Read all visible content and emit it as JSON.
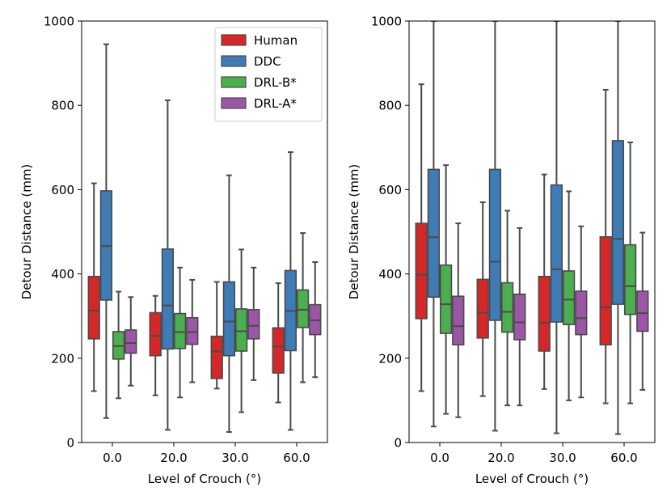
{
  "colors": {
    "Human": "#d62728",
    "DDC": "#3f7bb5",
    "DRL-B*": "#4caf4f",
    "DRL-A*": "#9b56a6",
    "line": "#4a4a4a",
    "axis": "#000000"
  },
  "chart_data": [
    {
      "type": "box",
      "panel": "left",
      "xlabel": "Level of Crouch (°)",
      "ylabel": "Detour Distance (mm)",
      "ylim": [
        0,
        1000
      ],
      "yticks": [
        "0",
        "200",
        "400",
        "600",
        "800",
        "1000"
      ],
      "categories": [
        "0.0",
        "20.0",
        "30.0",
        "60.0"
      ],
      "legend": {
        "position": "top-right",
        "entries": [
          "Human",
          "DDC",
          "DRL-B*",
          "DRL-A*"
        ]
      },
      "series": [
        {
          "name": "Human",
          "boxes": [
            {
              "whislo": 122,
              "q1": 246,
              "med": 313,
              "q3": 394,
              "whishi": 615
            },
            {
              "whislo": 112,
              "q1": 206,
              "med": 253,
              "q3": 308,
              "whishi": 348
            },
            {
              "whislo": 128,
              "q1": 152,
              "med": 216,
              "q3": 252,
              "whishi": 381
            },
            {
              "whislo": 95,
              "q1": 165,
              "med": 228,
              "q3": 272,
              "whishi": 378
            }
          ]
        },
        {
          "name": "DDC",
          "boxes": [
            {
              "whislo": 58,
              "q1": 338,
              "med": 466,
              "q3": 597,
              "whishi": 945
            },
            {
              "whislo": 30,
              "q1": 222,
              "med": 325,
              "q3": 459,
              "whishi": 812
            },
            {
              "whislo": 25,
              "q1": 206,
              "med": 287,
              "q3": 381,
              "whishi": 634
            },
            {
              "whislo": 30,
              "q1": 218,
              "med": 312,
              "q3": 408,
              "whishi": 689
            }
          ]
        },
        {
          "name": "DRL-B*",
          "boxes": [
            {
              "whislo": 105,
              "q1": 198,
              "med": 229,
              "q3": 263,
              "whishi": 358
            },
            {
              "whislo": 107,
              "q1": 223,
              "med": 262,
              "q3": 306,
              "whishi": 415
            },
            {
              "whislo": 72,
              "q1": 217,
              "med": 264,
              "q3": 317,
              "whishi": 458
            },
            {
              "whislo": 143,
              "q1": 273,
              "med": 315,
              "q3": 362,
              "whishi": 497
            }
          ]
        },
        {
          "name": "DRL-A*",
          "boxes": [
            {
              "whislo": 135,
              "q1": 212,
              "med": 236,
              "q3": 267,
              "whishi": 345
            },
            {
              "whislo": 143,
              "q1": 233,
              "med": 262,
              "q3": 296,
              "whishi": 386
            },
            {
              "whislo": 148,
              "q1": 246,
              "med": 277,
              "q3": 315,
              "whishi": 415
            },
            {
              "whislo": 155,
              "q1": 256,
              "med": 290,
              "q3": 327,
              "whishi": 428
            }
          ]
        }
      ]
    },
    {
      "type": "box",
      "panel": "right",
      "xlabel": "Level of Crouch (°)",
      "ylabel": "Detour Distance (mm)",
      "ylim": [
        0,
        1000
      ],
      "yticks": [
        "0",
        "200",
        "400",
        "600",
        "800",
        "1000"
      ],
      "categories": [
        "0.0",
        "20.0",
        "30.0",
        "60.0"
      ],
      "series": [
        {
          "name": "Human",
          "boxes": [
            {
              "whislo": 122,
              "q1": 294,
              "med": 398,
              "q3": 520,
              "whishi": 850
            },
            {
              "whislo": 110,
              "q1": 248,
              "med": 308,
              "q3": 387,
              "whishi": 570
            },
            {
              "whislo": 127,
              "q1": 217,
              "med": 284,
              "q3": 394,
              "whishi": 636
            },
            {
              "whislo": 93,
              "q1": 232,
              "med": 321,
              "q3": 488,
              "whishi": 837
            }
          ]
        },
        {
          "name": "DDC",
          "boxes": [
            {
              "whislo": 38,
              "q1": 345,
              "med": 487,
              "q3": 648,
              "whishi": 1000
            },
            {
              "whislo": 28,
              "q1": 290,
              "med": 429,
              "q3": 648,
              "whishi": 1000
            },
            {
              "whislo": 22,
              "q1": 286,
              "med": 411,
              "q3": 611,
              "whishi": 1000
            },
            {
              "whislo": 20,
              "q1": 328,
              "med": 483,
              "q3": 716,
              "whishi": 1000
            }
          ]
        },
        {
          "name": "DRL-B*",
          "boxes": [
            {
              "whislo": 68,
              "q1": 259,
              "med": 328,
              "q3": 421,
              "whishi": 658
            },
            {
              "whislo": 88,
              "q1": 262,
              "med": 310,
              "q3": 379,
              "whishi": 550
            },
            {
              "whislo": 100,
              "q1": 280,
              "med": 339,
              "q3": 407,
              "whishi": 596
            },
            {
              "whislo": 93,
              "q1": 304,
              "med": 371,
              "q3": 469,
              "whishi": 712
            }
          ]
        },
        {
          "name": "DRL-A*",
          "boxes": [
            {
              "whislo": 60,
              "q1": 232,
              "med": 276,
              "q3": 347,
              "whishi": 520
            },
            {
              "whislo": 88,
              "q1": 244,
              "med": 285,
              "q3": 352,
              "whishi": 509
            },
            {
              "whislo": 107,
              "q1": 256,
              "med": 295,
              "q3": 359,
              "whishi": 513
            },
            {
              "whislo": 125,
              "q1": 264,
              "med": 307,
              "q3": 359,
              "whishi": 498
            }
          ]
        }
      ]
    }
  ]
}
